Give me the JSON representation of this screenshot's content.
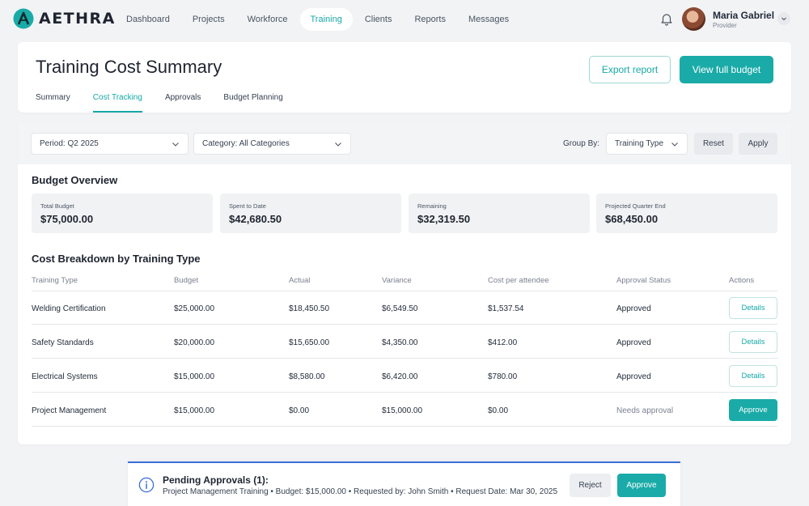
{
  "app": {
    "brand": "AETHRA",
    "accent": "#1aaba8",
    "info_color": "#3a6fd8"
  },
  "nav": {
    "items": [
      {
        "label": "Dashboard"
      },
      {
        "label": "Projects"
      },
      {
        "label": "Workforce"
      },
      {
        "label": "Training"
      },
      {
        "label": "Clients"
      },
      {
        "label": "Reports"
      },
      {
        "label": "Messages"
      }
    ],
    "active": "Training"
  },
  "user": {
    "name": "Maria Gabriel",
    "role": "Provider"
  },
  "header": {
    "title": "Training Cost Summary",
    "export_label": "Export report",
    "budget_label": "View full budget",
    "tabs": [
      {
        "label": "Summary"
      },
      {
        "label": "Cost Tracking"
      },
      {
        "label": "Approvals"
      },
      {
        "label": "Budget Planning"
      }
    ],
    "active_tab": "Cost Tracking"
  },
  "filters": {
    "period": "Period: Q2 2025",
    "category": "Category: All Categories",
    "group_by_label": "Group By:",
    "group_by_value": "Training Type",
    "reset_label": "Reset",
    "apply_label": "Apply"
  },
  "overview": {
    "title": "Budget Overview",
    "stats": [
      {
        "label": "Total Budget",
        "value": "$75,000.00"
      },
      {
        "label": "Spent to Date",
        "value": "$42,680.50"
      },
      {
        "label": "Remaining",
        "value": "$32,319.50"
      },
      {
        "label": "Projected Quarter End",
        "value": "$68,450.00"
      }
    ]
  },
  "breakdown": {
    "title": "Cost Breakdown by Training Type",
    "columns": [
      "Training Type",
      "Budget",
      "Actual",
      "Variance",
      "Cost per attendee",
      "Approval Status",
      "Actions"
    ],
    "rows": [
      {
        "type": "Welding Certification",
        "budget": "$25,000.00",
        "actual": "$18,450.50",
        "variance": "$6,549.50",
        "cpa": "$1,537.54",
        "status": "Approved",
        "action": "Details"
      },
      {
        "type": "Safety Standards",
        "budget": "$20,000.00",
        "actual": "$15,650.00",
        "variance": "$4,350.00",
        "cpa": "$412.00",
        "status": "Approved",
        "action": "Details"
      },
      {
        "type": "Electrical Systems",
        "budget": "$15,000.00",
        "actual": "$8,580.00",
        "variance": "$6,420.00",
        "cpa": "$780.00",
        "status": "Approved",
        "action": "Details"
      },
      {
        "type": "Project Management",
        "budget": "$15,000.00",
        "actual": "$0.00",
        "variance": "$15,000.00",
        "cpa": "$0.00",
        "status": "Needs approval",
        "action": "Approve"
      }
    ]
  },
  "pending": {
    "title": "Pending Approvals (1):",
    "detail": "Project Management Training • Budget: $15,000.00 • Requested by: John Smith • Request Date: Mar 30, 2025",
    "reject_label": "Reject",
    "approve_label": "Approve"
  }
}
